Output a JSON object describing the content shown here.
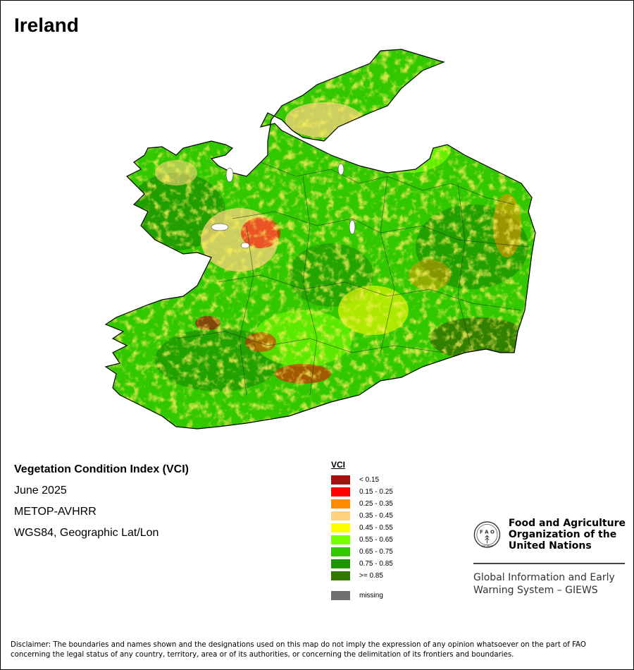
{
  "map": {
    "title": "Ireland",
    "product_title": "Vegetation Condition Index (VCI)",
    "period": "June 2025",
    "sensor": "METOP-AVHRR",
    "projection": "WGS84, Geographic Lat/Lon"
  },
  "legend": {
    "title": "VCI",
    "items": [
      {
        "label": "< 0.15",
        "color": "#a50f0f"
      },
      {
        "label": "0.15 - 0.25",
        "color": "#ff0000"
      },
      {
        "label": "0.25 - 0.35",
        "color": "#ff8c00"
      },
      {
        "label": "0.35 - 0.45",
        "color": "#ffd280"
      },
      {
        "label": "0.45 - 0.55",
        "color": "#ffff00"
      },
      {
        "label": "0.55 - 0.65",
        "color": "#78ff00"
      },
      {
        "label": "0.65 - 0.75",
        "color": "#32c800"
      },
      {
        "label": "0.75 - 0.85",
        "color": "#1e9600"
      },
      {
        "label": ">= 0.85",
        "color": "#327800"
      }
    ],
    "missing": {
      "label": "missing",
      "color": "#707070"
    }
  },
  "fao": {
    "name_line1": "Food and Agriculture",
    "name_line2": "Organization of the",
    "name_line3": "United Nations",
    "giews_line1": "Global Information and Early",
    "giews_line2": "Warning System – GIEWS",
    "logo_letters": "F A O",
    "logo_motto": "FIAT PANIS"
  },
  "disclaimer": {
    "line1": "Disclaimer: The boundaries and names shown and the designations used on this map do not imply the expression of any opinion whatsoever on the part of FAO",
    "line2": "concerning the legal status of any country, territory, area or of its authorities, or concerning the delimitation of its frontiers and boundaries."
  }
}
